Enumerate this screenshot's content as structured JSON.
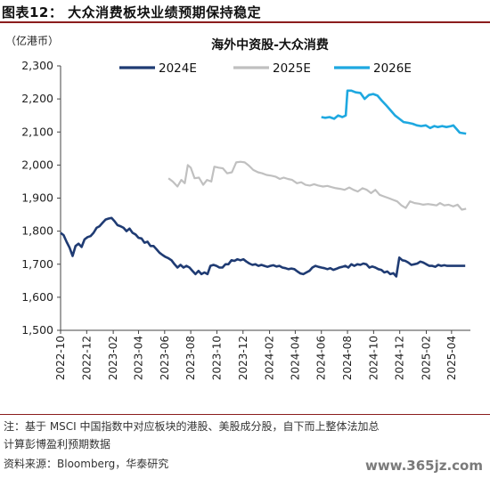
{
  "figure": {
    "title": "图表12：  大众消费板块业绩预期保持稳定"
  },
  "chart_data": {
    "type": "line",
    "title": "海外中资股-大众消费",
    "yunit": "（亿港币）",
    "ylim": [
      1500,
      2300
    ],
    "yticks": [
      1500,
      1600,
      1700,
      1800,
      1900,
      2000,
      2100,
      2200,
      2300
    ],
    "ytick_labels": [
      "1,500",
      "1,600",
      "1,700",
      "1,800",
      "1,900",
      "2,000",
      "2,100",
      "2,200",
      "2,300"
    ],
    "xlim": [
      "2022-10-01",
      "2025-05-15"
    ],
    "xtick_labels": [
      "2022-10",
      "2022-12",
      "2023-02",
      "2023-04",
      "2023-06",
      "2023-08",
      "2023-10",
      "2023-12",
      "2024-02",
      "2024-04",
      "2024-06",
      "2024-08",
      "2024-10",
      "2024-12",
      "2025-02",
      "2025-04"
    ],
    "grid": false,
    "legend_position": "top",
    "series": [
      {
        "name": "2024E",
        "color": "#1f3b73",
        "points": [
          [
            "2022-10-01",
            1795
          ],
          [
            "2022-10-08",
            1788
          ],
          [
            "2022-10-15",
            1768
          ],
          [
            "2022-10-22",
            1750
          ],
          [
            "2022-10-29",
            1725
          ],
          [
            "2022-11-05",
            1755
          ],
          [
            "2022-11-12",
            1762
          ],
          [
            "2022-11-19",
            1752
          ],
          [
            "2022-11-26",
            1775
          ],
          [
            "2022-12-03",
            1782
          ],
          [
            "2022-12-10",
            1785
          ],
          [
            "2022-12-17",
            1795
          ],
          [
            "2022-12-24",
            1810
          ],
          [
            "2022-12-31",
            1815
          ],
          [
            "2023-01-07",
            1825
          ],
          [
            "2023-01-14",
            1835
          ],
          [
            "2023-01-21",
            1838
          ],
          [
            "2023-01-28",
            1840
          ],
          [
            "2023-02-04",
            1830
          ],
          [
            "2023-02-11",
            1818
          ],
          [
            "2023-02-18",
            1815
          ],
          [
            "2023-02-25",
            1810
          ],
          [
            "2023-03-04",
            1800
          ],
          [
            "2023-03-11",
            1808
          ],
          [
            "2023-03-18",
            1795
          ],
          [
            "2023-03-25",
            1790
          ],
          [
            "2023-04-01",
            1780
          ],
          [
            "2023-04-08",
            1778
          ],
          [
            "2023-04-15",
            1765
          ],
          [
            "2023-04-22",
            1768
          ],
          [
            "2023-04-29",
            1755
          ],
          [
            "2023-05-06",
            1755
          ],
          [
            "2023-05-13",
            1745
          ],
          [
            "2023-05-20",
            1735
          ],
          [
            "2023-05-27",
            1728
          ],
          [
            "2023-06-03",
            1722
          ],
          [
            "2023-06-10",
            1718
          ],
          [
            "2023-06-17",
            1712
          ],
          [
            "2023-06-24",
            1700
          ],
          [
            "2023-07-01",
            1690
          ],
          [
            "2023-07-08",
            1698
          ],
          [
            "2023-07-15",
            1690
          ],
          [
            "2023-07-22",
            1695
          ],
          [
            "2023-07-29",
            1690
          ],
          [
            "2023-08-05",
            1680
          ],
          [
            "2023-08-12",
            1670
          ],
          [
            "2023-08-19",
            1680
          ],
          [
            "2023-08-26",
            1670
          ],
          [
            "2023-09-02",
            1675
          ],
          [
            "2023-09-09",
            1670
          ],
          [
            "2023-09-16",
            1695
          ],
          [
            "2023-09-23",
            1698
          ],
          [
            "2023-09-30",
            1695
          ],
          [
            "2023-10-07",
            1690
          ],
          [
            "2023-10-14",
            1690
          ],
          [
            "2023-10-21",
            1700
          ],
          [
            "2023-10-28",
            1700
          ],
          [
            "2023-11-04",
            1712
          ],
          [
            "2023-11-11",
            1710
          ],
          [
            "2023-11-18",
            1715
          ],
          [
            "2023-11-25",
            1712
          ],
          [
            "2023-12-02",
            1715
          ],
          [
            "2023-12-09",
            1708
          ],
          [
            "2023-12-16",
            1702
          ],
          [
            "2023-12-23",
            1698
          ],
          [
            "2023-12-30",
            1700
          ],
          [
            "2024-01-06",
            1695
          ],
          [
            "2024-01-13",
            1698
          ],
          [
            "2024-01-20",
            1695
          ],
          [
            "2024-01-27",
            1692
          ],
          [
            "2024-02-03",
            1695
          ],
          [
            "2024-02-10",
            1697
          ],
          [
            "2024-02-17",
            1693
          ],
          [
            "2024-02-24",
            1695
          ],
          [
            "2024-03-02",
            1690
          ],
          [
            "2024-03-09",
            1688
          ],
          [
            "2024-03-16",
            1685
          ],
          [
            "2024-03-23",
            1687
          ],
          [
            "2024-03-30",
            1685
          ],
          [
            "2024-04-06",
            1678
          ],
          [
            "2024-04-13",
            1672
          ],
          [
            "2024-04-20",
            1670
          ],
          [
            "2024-04-27",
            1675
          ],
          [
            "2024-05-04",
            1680
          ],
          [
            "2024-05-11",
            1690
          ],
          [
            "2024-05-18",
            1695
          ],
          [
            "2024-05-25",
            1692
          ],
          [
            "2024-06-01",
            1690
          ],
          [
            "2024-06-08",
            1688
          ],
          [
            "2024-06-15",
            1685
          ],
          [
            "2024-06-22",
            1688
          ],
          [
            "2024-06-29",
            1683
          ],
          [
            "2024-07-06",
            1686
          ],
          [
            "2024-07-13",
            1690
          ],
          [
            "2024-07-20",
            1692
          ],
          [
            "2024-07-27",
            1695
          ],
          [
            "2024-08-03",
            1690
          ],
          [
            "2024-08-10",
            1700
          ],
          [
            "2024-08-17",
            1695
          ],
          [
            "2024-08-24",
            1700
          ],
          [
            "2024-08-31",
            1698
          ],
          [
            "2024-09-07",
            1702
          ],
          [
            "2024-09-14",
            1700
          ],
          [
            "2024-09-21",
            1690
          ],
          [
            "2024-09-28",
            1693
          ],
          [
            "2024-10-05",
            1690
          ],
          [
            "2024-10-12",
            1685
          ],
          [
            "2024-10-19",
            1683
          ],
          [
            "2024-10-26",
            1675
          ],
          [
            "2024-11-02",
            1678
          ],
          [
            "2024-11-09",
            1670
          ],
          [
            "2024-11-16",
            1673
          ],
          [
            "2024-11-23",
            1663
          ],
          [
            "2024-11-30",
            1720
          ],
          [
            "2024-12-07",
            1712
          ],
          [
            "2024-12-14",
            1710
          ],
          [
            "2024-12-21",
            1705
          ],
          [
            "2024-12-28",
            1698
          ],
          [
            "2025-01-04",
            1700
          ],
          [
            "2025-01-11",
            1702
          ],
          [
            "2025-01-18",
            1708
          ],
          [
            "2025-01-25",
            1705
          ],
          [
            "2025-02-01",
            1700
          ],
          [
            "2025-02-08",
            1695
          ],
          [
            "2025-02-15",
            1695
          ],
          [
            "2025-02-22",
            1692
          ],
          [
            "2025-03-01",
            1698
          ],
          [
            "2025-03-08",
            1695
          ],
          [
            "2025-03-15",
            1697
          ],
          [
            "2025-03-22",
            1695
          ],
          [
            "2025-03-29",
            1695
          ],
          [
            "2025-04-05",
            1695
          ],
          [
            "2025-04-12",
            1695
          ],
          [
            "2025-04-19",
            1695
          ],
          [
            "2025-04-26",
            1695
          ],
          [
            "2025-05-03",
            1695
          ]
        ]
      },
      {
        "name": "2025E",
        "color": "#c0c0c0",
        "points": [
          [
            "2023-06-10",
            1960
          ],
          [
            "2023-06-20",
            1950
          ],
          [
            "2023-07-01",
            1935
          ],
          [
            "2023-07-10",
            1955
          ],
          [
            "2023-07-18",
            1945
          ],
          [
            "2023-07-25",
            2000
          ],
          [
            "2023-08-01",
            1992
          ],
          [
            "2023-08-10",
            1960
          ],
          [
            "2023-08-20",
            1962
          ],
          [
            "2023-08-30",
            1940
          ],
          [
            "2023-09-08",
            1955
          ],
          [
            "2023-09-18",
            1950
          ],
          [
            "2023-09-25",
            1995
          ],
          [
            "2023-10-05",
            1992
          ],
          [
            "2023-10-15",
            1990
          ],
          [
            "2023-10-25",
            1975
          ],
          [
            "2023-11-05",
            1978
          ],
          [
            "2023-11-15",
            2008
          ],
          [
            "2023-11-25",
            2010
          ],
          [
            "2023-12-05",
            2008
          ],
          [
            "2023-12-15",
            1998
          ],
          [
            "2023-12-25",
            1985
          ],
          [
            "2024-01-05",
            1978
          ],
          [
            "2024-01-15",
            1975
          ],
          [
            "2024-01-25",
            1970
          ],
          [
            "2024-02-05",
            1968
          ],
          [
            "2024-02-15",
            1965
          ],
          [
            "2024-02-25",
            1958
          ],
          [
            "2024-03-05",
            1962
          ],
          [
            "2024-03-15",
            1958
          ],
          [
            "2024-03-25",
            1955
          ],
          [
            "2024-04-05",
            1945
          ],
          [
            "2024-04-15",
            1948
          ],
          [
            "2024-04-25",
            1940
          ],
          [
            "2024-05-05",
            1938
          ],
          [
            "2024-05-15",
            1942
          ],
          [
            "2024-05-25",
            1938
          ],
          [
            "2024-06-05",
            1935
          ],
          [
            "2024-06-15",
            1937
          ],
          [
            "2024-06-25",
            1933
          ],
          [
            "2024-07-05",
            1930
          ],
          [
            "2024-07-15",
            1928
          ],
          [
            "2024-07-25",
            1925
          ],
          [
            "2024-08-05",
            1932
          ],
          [
            "2024-08-15",
            1925
          ],
          [
            "2024-08-25",
            1920
          ],
          [
            "2024-09-05",
            1930
          ],
          [
            "2024-09-15",
            1925
          ],
          [
            "2024-09-25",
            1915
          ],
          [
            "2024-10-05",
            1925
          ],
          [
            "2024-10-15",
            1910
          ],
          [
            "2024-10-25",
            1905
          ],
          [
            "2024-11-05",
            1900
          ],
          [
            "2024-11-15",
            1895
          ],
          [
            "2024-11-25",
            1890
          ],
          [
            "2024-12-05",
            1878
          ],
          [
            "2024-12-15",
            1870
          ],
          [
            "2024-12-25",
            1890
          ],
          [
            "2025-01-05",
            1885
          ],
          [
            "2025-01-15",
            1883
          ],
          [
            "2025-01-25",
            1880
          ],
          [
            "2025-02-05",
            1882
          ],
          [
            "2025-02-15",
            1880
          ],
          [
            "2025-02-25",
            1878
          ],
          [
            "2025-03-05",
            1885
          ],
          [
            "2025-03-15",
            1878
          ],
          [
            "2025-03-25",
            1880
          ],
          [
            "2025-04-05",
            1875
          ],
          [
            "2025-04-15",
            1880
          ],
          [
            "2025-04-25",
            1865
          ],
          [
            "2025-05-05",
            1868
          ]
        ]
      },
      {
        "name": "2026E",
        "color": "#1ea8e0",
        "points": [
          [
            "2024-06-01",
            2145
          ],
          [
            "2024-06-10",
            2143
          ],
          [
            "2024-06-20",
            2145
          ],
          [
            "2024-07-01",
            2140
          ],
          [
            "2024-07-10",
            2150
          ],
          [
            "2024-07-20",
            2145
          ],
          [
            "2024-07-28",
            2150
          ],
          [
            "2024-08-01",
            2225
          ],
          [
            "2024-08-10",
            2225
          ],
          [
            "2024-08-20",
            2220
          ],
          [
            "2024-08-31",
            2218
          ],
          [
            "2024-09-10",
            2200
          ],
          [
            "2024-09-20",
            2212
          ],
          [
            "2024-09-30",
            2215
          ],
          [
            "2024-10-10",
            2210
          ],
          [
            "2024-10-20",
            2195
          ],
          [
            "2024-10-31",
            2180
          ],
          [
            "2024-11-10",
            2165
          ],
          [
            "2024-11-20",
            2150
          ],
          [
            "2024-11-30",
            2140
          ],
          [
            "2024-12-10",
            2130
          ],
          [
            "2024-12-20",
            2128
          ],
          [
            "2024-12-31",
            2125
          ],
          [
            "2025-01-10",
            2120
          ],
          [
            "2025-01-20",
            2118
          ],
          [
            "2025-01-31",
            2120
          ],
          [
            "2025-02-10",
            2112
          ],
          [
            "2025-02-20",
            2118
          ],
          [
            "2025-02-28",
            2115
          ],
          [
            "2025-03-10",
            2118
          ],
          [
            "2025-03-20",
            2115
          ],
          [
            "2025-03-31",
            2118
          ],
          [
            "2025-04-05",
            2120
          ],
          [
            "2025-04-12",
            2110
          ],
          [
            "2025-04-20",
            2098
          ],
          [
            "2025-05-05",
            2095
          ]
        ]
      }
    ]
  },
  "footer": {
    "note_line1": "注：基于 MSCI 中国指数中对应板块的港股、美股成分股，自下而上整体法加总",
    "note_line2": "计算彭博盈利预期数据",
    "source": "资料来源：Bloomberg，华泰研究",
    "watermark": "www.365jz.com"
  }
}
